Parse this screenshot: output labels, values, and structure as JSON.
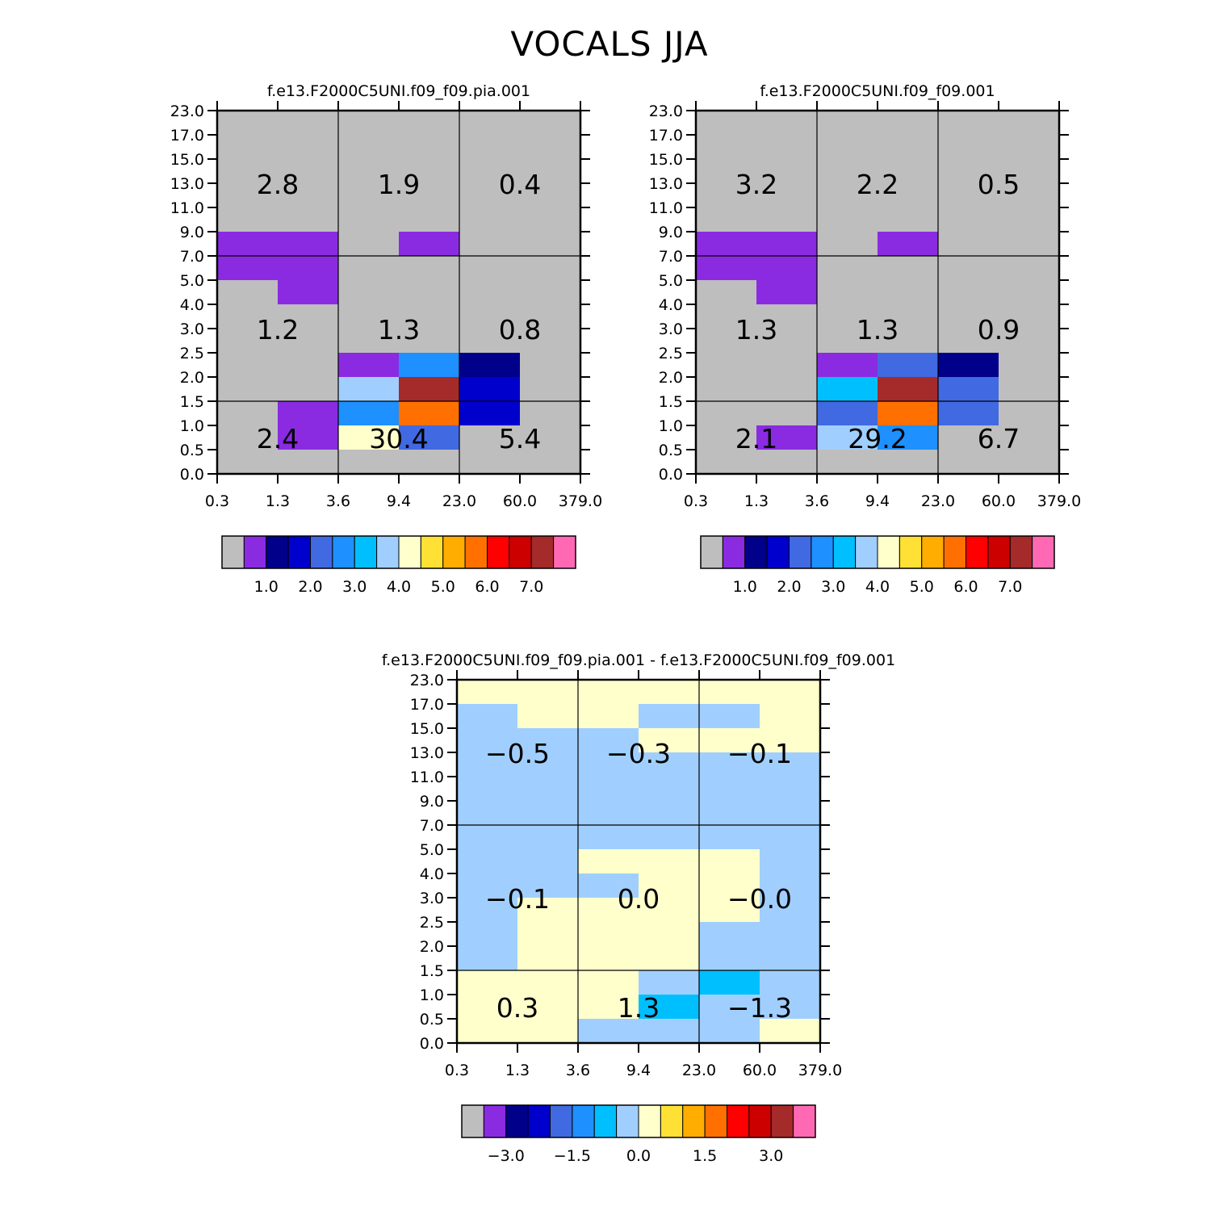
{
  "title": "VOCALS JJA",
  "chart_data": [
    {
      "type": "heatmap",
      "title": "f.e13.F2000C5UNI.f09_f09.pia.001",
      "x_ticks": [
        "0.3",
        "1.3",
        "3.6",
        "9.4",
        "23.0",
        "60.0",
        "379.0"
      ],
      "y_ticks": [
        "0.0",
        "0.5",
        "1.0",
        "1.5",
        "2.0",
        "2.5",
        "3.0",
        "4.0",
        "5.0",
        "7.0",
        "9.0",
        "11.0",
        "13.0",
        "15.0",
        "17.0",
        "23.0"
      ],
      "cells": [
        {
          "x": 0,
          "y": 9,
          "c": 1
        },
        {
          "x": 1,
          "y": 9,
          "c": 1
        },
        {
          "x": 0,
          "y": 8,
          "c": 1
        },
        {
          "x": 1,
          "y": 8,
          "c": 1
        },
        {
          "x": 1,
          "y": 7,
          "c": 1
        },
        {
          "x": 3,
          "y": 9,
          "c": 1
        },
        {
          "x": 2,
          "y": 4,
          "c": 1
        },
        {
          "x": 3,
          "y": 4,
          "c": 5
        },
        {
          "x": 4,
          "y": 4,
          "c": 2
        },
        {
          "x": 2,
          "y": 3,
          "c": 7
        },
        {
          "x": 3,
          "y": 3,
          "c": 14
        },
        {
          "x": 4,
          "y": 3,
          "c": 3
        },
        {
          "x": 1,
          "y": 2,
          "c": 1
        },
        {
          "x": 2,
          "y": 2,
          "c": 5
        },
        {
          "x": 3,
          "y": 2,
          "c": 11
        },
        {
          "x": 4,
          "y": 2,
          "c": 3
        },
        {
          "x": 1,
          "y": 1,
          "c": 1
        },
        {
          "x": 2,
          "y": 1,
          "c": 8
        },
        {
          "x": 3,
          "y": 1,
          "c": 4
        }
      ],
      "box_values": [
        [
          "2.8",
          "1.9",
          "0.4"
        ],
        [
          "1.2",
          "1.3",
          "0.8"
        ],
        [
          "2.4",
          "30.4",
          "5.4"
        ]
      ],
      "colorbar_labels": [
        "1.0",
        "2.0",
        "3.0",
        "4.0",
        "5.0",
        "6.0",
        "7.0"
      ]
    },
    {
      "type": "heatmap",
      "title": "f.e13.F2000C5UNI.f09_f09.001",
      "x_ticks": [
        "0.3",
        "1.3",
        "3.6",
        "9.4",
        "23.0",
        "60.0",
        "379.0"
      ],
      "y_ticks": [
        "0.0",
        "0.5",
        "1.0",
        "1.5",
        "2.0",
        "2.5",
        "3.0",
        "4.0",
        "5.0",
        "7.0",
        "9.0",
        "11.0",
        "13.0",
        "15.0",
        "17.0",
        "23.0"
      ],
      "cells": [
        {
          "x": 0,
          "y": 9,
          "c": 1
        },
        {
          "x": 1,
          "y": 9,
          "c": 1
        },
        {
          "x": 0,
          "y": 8,
          "c": 1
        },
        {
          "x": 1,
          "y": 8,
          "c": 1
        },
        {
          "x": 1,
          "y": 7,
          "c": 1
        },
        {
          "x": 3,
          "y": 9,
          "c": 1
        },
        {
          "x": 2,
          "y": 4,
          "c": 1
        },
        {
          "x": 3,
          "y": 4,
          "c": 4
        },
        {
          "x": 4,
          "y": 4,
          "c": 2
        },
        {
          "x": 2,
          "y": 3,
          "c": 6
        },
        {
          "x": 3,
          "y": 3,
          "c": 14
        },
        {
          "x": 4,
          "y": 3,
          "c": 4
        },
        {
          "x": 2,
          "y": 2,
          "c": 4
        },
        {
          "x": 3,
          "y": 2,
          "c": 11
        },
        {
          "x": 4,
          "y": 2,
          "c": 4
        },
        {
          "x": 1,
          "y": 1,
          "c": 1
        },
        {
          "x": 2,
          "y": 1,
          "c": 7
        },
        {
          "x": 3,
          "y": 1,
          "c": 5
        }
      ],
      "box_values": [
        [
          "3.2",
          "2.2",
          "0.5"
        ],
        [
          "1.3",
          "1.3",
          "0.9"
        ],
        [
          "2.1",
          "29.2",
          "6.7"
        ]
      ],
      "colorbar_labels": [
        "1.0",
        "2.0",
        "3.0",
        "4.0",
        "5.0",
        "6.0",
        "7.0"
      ]
    },
    {
      "type": "heatmap",
      "title": "f.e13.F2000C5UNI.f09_f09.pia.001 - f.e13.F2000C5UNI.f09_f09.001",
      "x_ticks": [
        "0.3",
        "1.3",
        "3.6",
        "9.4",
        "23.0",
        "60.0",
        "379.0"
      ],
      "y_ticks": [
        "0.0",
        "0.5",
        "1.0",
        "1.5",
        "2.0",
        "2.5",
        "3.0",
        "4.0",
        "5.0",
        "7.0",
        "9.0",
        "11.0",
        "13.0",
        "15.0",
        "17.0",
        "23.0"
      ],
      "background_color_index": 7,
      "cells": [
        {
          "x": 0,
          "y": 0,
          "c": 7
        },
        {
          "x": 1,
          "y": 0,
          "c": 7
        },
        {
          "x": 2,
          "y": 0,
          "c": 6
        },
        {
          "x": 3,
          "y": 0,
          "c": 6
        },
        {
          "x": 4,
          "y": 0,
          "c": 6
        },
        {
          "x": 5,
          "y": 0,
          "c": 7
        },
        {
          "x": 0,
          "y": 1,
          "c": 7
        },
        {
          "x": 1,
          "y": 1,
          "c": 7
        },
        {
          "x": 2,
          "y": 1,
          "c": 7
        },
        {
          "x": 3,
          "y": 1,
          "c": 5
        },
        {
          "x": 4,
          "y": 1,
          "c": 6
        },
        {
          "x": 5,
          "y": 1,
          "c": 6
        },
        {
          "x": 0,
          "y": 2,
          "c": 7
        },
        {
          "x": 1,
          "y": 2,
          "c": 7
        },
        {
          "x": 2,
          "y": 2,
          "c": 7
        },
        {
          "x": 3,
          "y": 2,
          "c": 6
        },
        {
          "x": 4,
          "y": 2,
          "c": 5
        },
        {
          "x": 5,
          "y": 2,
          "c": 6
        },
        {
          "x": 0,
          "y": 3,
          "c": 6
        },
        {
          "x": 1,
          "y": 3,
          "c": 7
        },
        {
          "x": 2,
          "y": 3,
          "c": 7
        },
        {
          "x": 3,
          "y": 3,
          "c": 7
        },
        {
          "x": 4,
          "y": 3,
          "c": 6
        },
        {
          "x": 5,
          "y": 3,
          "c": 6
        },
        {
          "x": 0,
          "y": 4,
          "c": 6
        },
        {
          "x": 1,
          "y": 4,
          "c": 7
        },
        {
          "x": 2,
          "y": 4,
          "c": 7
        },
        {
          "x": 3,
          "y": 4,
          "c": 7
        },
        {
          "x": 4,
          "y": 4,
          "c": 6
        },
        {
          "x": 5,
          "y": 4,
          "c": 6
        },
        {
          "x": 0,
          "y": 5,
          "c": 6
        },
        {
          "x": 1,
          "y": 5,
          "c": 7
        },
        {
          "x": 2,
          "y": 5,
          "c": 7
        },
        {
          "x": 3,
          "y": 5,
          "c": 7
        },
        {
          "x": 4,
          "y": 5,
          "c": 7
        },
        {
          "x": 5,
          "y": 5,
          "c": 6
        },
        {
          "x": 0,
          "y": 6,
          "c": 6
        },
        {
          "x": 1,
          "y": 6,
          "c": 6
        },
        {
          "x": 2,
          "y": 6,
          "c": 6
        },
        {
          "x": 3,
          "y": 6,
          "c": 7
        },
        {
          "x": 4,
          "y": 6,
          "c": 7
        },
        {
          "x": 5,
          "y": 6,
          "c": 6
        },
        {
          "x": 0,
          "y": 7,
          "c": 6
        },
        {
          "x": 1,
          "y": 7,
          "c": 6
        },
        {
          "x": 2,
          "y": 7,
          "c": 7
        },
        {
          "x": 3,
          "y": 7,
          "c": 7
        },
        {
          "x": 4,
          "y": 7,
          "c": 7
        },
        {
          "x": 5,
          "y": 7,
          "c": 6
        },
        {
          "x": 0,
          "y": 8,
          "c": 6
        },
        {
          "x": 1,
          "y": 8,
          "c": 6
        },
        {
          "x": 2,
          "y": 8,
          "c": 6
        },
        {
          "x": 3,
          "y": 8,
          "c": 6
        },
        {
          "x": 4,
          "y": 8,
          "c": 6
        },
        {
          "x": 5,
          "y": 8,
          "c": 6
        },
        {
          "x": 0,
          "y": 9,
          "c": 6
        },
        {
          "x": 1,
          "y": 9,
          "c": 6
        },
        {
          "x": 2,
          "y": 9,
          "c": 6
        },
        {
          "x": 3,
          "y": 9,
          "c": 6
        },
        {
          "x": 4,
          "y": 9,
          "c": 6
        },
        {
          "x": 5,
          "y": 9,
          "c": 6
        },
        {
          "x": 0,
          "y": 10,
          "c": 6
        },
        {
          "x": 1,
          "y": 10,
          "c": 6
        },
        {
          "x": 2,
          "y": 10,
          "c": 6
        },
        {
          "x": 3,
          "y": 10,
          "c": 6
        },
        {
          "x": 4,
          "y": 10,
          "c": 6
        },
        {
          "x": 5,
          "y": 10,
          "c": 6
        },
        {
          "x": 0,
          "y": 11,
          "c": 6
        },
        {
          "x": 1,
          "y": 11,
          "c": 6
        },
        {
          "x": 2,
          "y": 11,
          "c": 6
        },
        {
          "x": 3,
          "y": 11,
          "c": 6
        },
        {
          "x": 4,
          "y": 11,
          "c": 6
        },
        {
          "x": 5,
          "y": 11,
          "c": 6
        },
        {
          "x": 0,
          "y": 12,
          "c": 6
        },
        {
          "x": 1,
          "y": 12,
          "c": 6
        },
        {
          "x": 2,
          "y": 12,
          "c": 6
        },
        {
          "x": 3,
          "y": 12,
          "c": 7
        },
        {
          "x": 4,
          "y": 12,
          "c": 7
        },
        {
          "x": 5,
          "y": 12,
          "c": 7
        },
        {
          "x": 0,
          "y": 13,
          "c": 6
        },
        {
          "x": 1,
          "y": 13,
          "c": 7
        },
        {
          "x": 2,
          "y": 13,
          "c": 7
        },
        {
          "x": 3,
          "y": 13,
          "c": 6
        },
        {
          "x": 4,
          "y": 13,
          "c": 6
        },
        {
          "x": 5,
          "y": 13,
          "c": 7
        },
        {
          "x": 0,
          "y": 14,
          "c": 7
        },
        {
          "x": 1,
          "y": 14,
          "c": 7
        },
        {
          "x": 2,
          "y": 14,
          "c": 7
        },
        {
          "x": 3,
          "y": 14,
          "c": 7
        },
        {
          "x": 4,
          "y": 14,
          "c": 7
        },
        {
          "x": 5,
          "y": 14,
          "c": 7
        }
      ],
      "box_values": [
        [
          "-0.5",
          "-0.3",
          "-0.1"
        ],
        [
          "-0.1",
          "0.0",
          "-0.0"
        ],
        [
          "0.3",
          "1.3",
          "-1.3"
        ]
      ],
      "colorbar_labels": [
        "-3.0",
        "-1.5",
        "0.0",
        "1.5",
        "3.0"
      ]
    }
  ],
  "colors": {
    "palette": [
      "#bebebe",
      "#8a2be2",
      "#00008b",
      "#0000cd",
      "#4169e1",
      "#1e90ff",
      "#00bfff",
      "#a0cfff",
      "#ffffcc",
      "#ffe135",
      "#ffad00",
      "#ff7000",
      "#ff0000",
      "#cd0000",
      "#a52a2a",
      "#ff69b4"
    ]
  }
}
